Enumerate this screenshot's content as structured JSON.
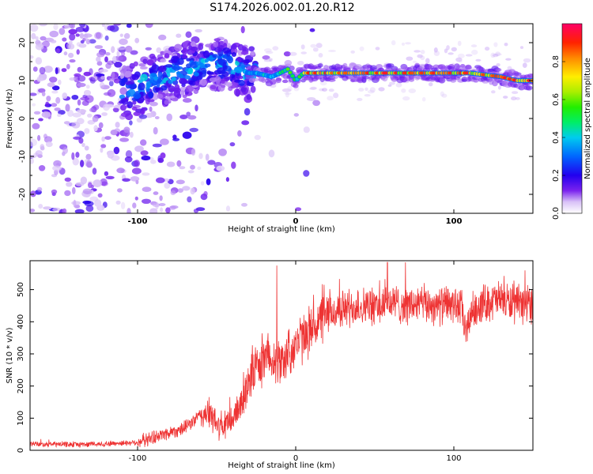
{
  "title": "S174.2026.002.01.20.R12",
  "chart_data": [
    {
      "type": "heatmap",
      "title": "S174.2026.002.01.20.R12",
      "xlabel": "Height of straight line (km)",
      "ylabel": "Frequency (Hz)",
      "xlim": [
        -168,
        150
      ],
      "ylim": [
        -25,
        25
      ],
      "xticks": [
        "-100",
        "0",
        "100"
      ],
      "yticks": [
        "20",
        "10",
        "0",
        "-10",
        "-20"
      ],
      "colorbar": {
        "label": "Normalized spectral amplitude",
        "range": [
          0,
          1
        ],
        "ticks": [
          "0.0",
          "0.2",
          "0.4",
          "0.6",
          "0.8"
        ]
      },
      "ridge": {
        "x": [
          -105,
          -90,
          -75,
          -60,
          -45,
          -35,
          -30,
          -25,
          -15,
          -10,
          -5,
          0,
          5,
          20,
          50,
          80,
          110,
          130,
          140,
          150
        ],
        "frequency_hz": [
          7,
          10,
          12,
          14,
          15,
          13,
          12,
          12,
          11,
          12,
          13,
          10,
          12,
          12,
          12,
          12,
          12,
          11,
          10,
          10
        ]
      }
    },
    {
      "type": "line",
      "xlabel": "Height of straight line (km)",
      "ylabel": "SNR (10 * v/v)",
      "xlim": [
        -168,
        150
      ],
      "ylim": [
        0,
        590
      ],
      "xticks": [
        "-100",
        "0",
        "100"
      ],
      "yticks": [
        "0",
        "100",
        "200",
        "300",
        "400",
        "500"
      ],
      "series": [
        {
          "name": "SNR",
          "color": "#ee3333",
          "x": [
            -168,
            -140,
            -120,
            -100,
            -90,
            -80,
            -70,
            -60,
            -55,
            -50,
            -45,
            -40,
            -35,
            -30,
            -25,
            -20,
            -15,
            -10,
            -5,
            0,
            5,
            10,
            15,
            20,
            25,
            30,
            40,
            50,
            60,
            70,
            80,
            90,
            100,
            105,
            108,
            110,
            115,
            120,
            130,
            140,
            150
          ],
          "values": [
            20,
            18,
            20,
            25,
            40,
            55,
            70,
            110,
            115,
            80,
            70,
            100,
            140,
            220,
            260,
            280,
            300,
            270,
            300,
            330,
            350,
            380,
            400,
            420,
            430,
            440,
            450,
            445,
            460,
            450,
            455,
            450,
            455,
            440,
            350,
            420,
            450,
            460,
            470,
            450,
            460
          ]
        }
      ],
      "spikes": [
        {
          "x": -12,
          "value": 575
        },
        {
          "x": 58,
          "value": 585
        },
        {
          "x": 145,
          "value": 560
        }
      ]
    }
  ]
}
